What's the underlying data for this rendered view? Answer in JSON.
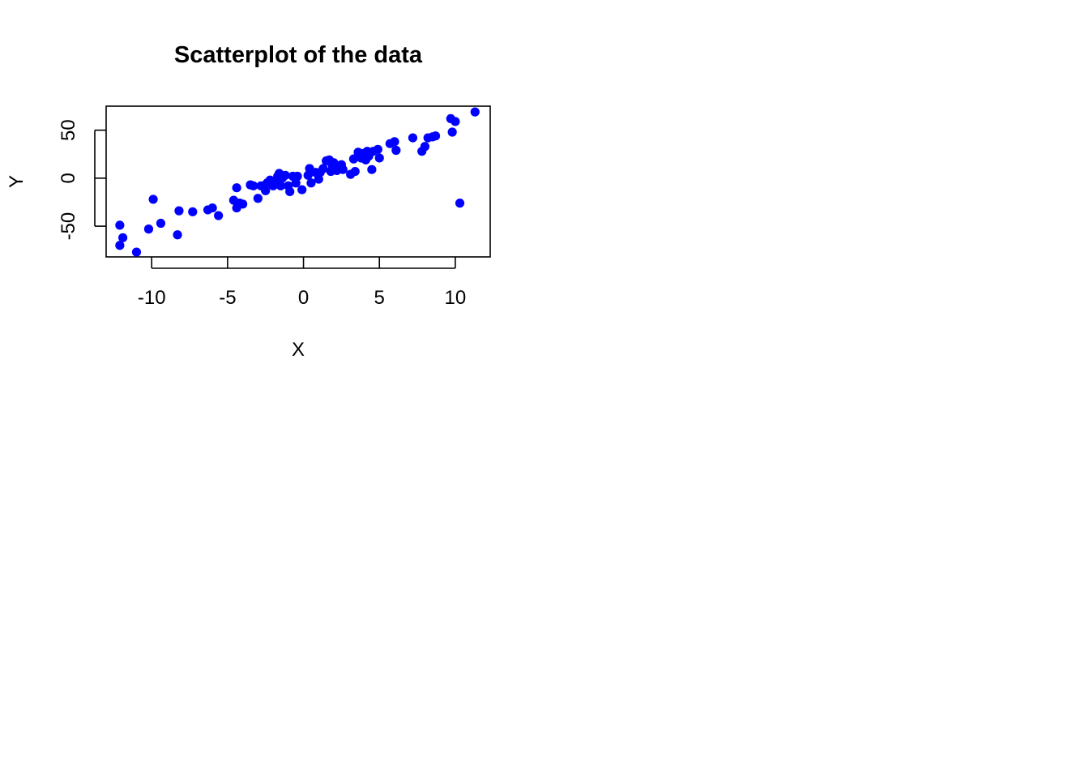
{
  "chart_data": {
    "type": "scatter",
    "title": "Scatterplot of the data",
    "xlabel": "X",
    "ylabel": "Y",
    "xlim": [
      -13,
      12.3
    ],
    "ylim": [
      -82,
      75
    ],
    "xticks": [
      -10,
      -5,
      0,
      5,
      10
    ],
    "xtick_labels": [
      "-10",
      "-5",
      "0",
      "5",
      "10"
    ],
    "yticks": [
      -50,
      0,
      50
    ],
    "ytick_labels": [
      "-50",
      "0",
      "50"
    ],
    "grid": false,
    "legend": "none",
    "marker": "filled-circle",
    "color": "#0000ff",
    "points": [
      {
        "x": -12.1,
        "y": -49
      },
      {
        "x": -11.9,
        "y": -62
      },
      {
        "x": -12.1,
        "y": -70
      },
      {
        "x": -11.0,
        "y": -77
      },
      {
        "x": -10.2,
        "y": -53
      },
      {
        "x": -9.9,
        "y": -22
      },
      {
        "x": -9.4,
        "y": -47
      },
      {
        "x": -8.2,
        "y": -34
      },
      {
        "x": -8.3,
        "y": -59
      },
      {
        "x": -7.3,
        "y": -35
      },
      {
        "x": -6.3,
        "y": -33
      },
      {
        "x": -6.0,
        "y": -31
      },
      {
        "x": -5.6,
        "y": -39
      },
      {
        "x": -4.6,
        "y": -23
      },
      {
        "x": -4.4,
        "y": -31
      },
      {
        "x": -4.4,
        "y": -10
      },
      {
        "x": -4.2,
        "y": -26
      },
      {
        "x": -4.0,
        "y": -27
      },
      {
        "x": -3.5,
        "y": -7
      },
      {
        "x": -3.3,
        "y": -8
      },
      {
        "x": -3.0,
        "y": -21
      },
      {
        "x": -2.8,
        "y": -8
      },
      {
        "x": -2.5,
        "y": -13
      },
      {
        "x": -2.4,
        "y": -5
      },
      {
        "x": -2.2,
        "y": -2
      },
      {
        "x": -2.0,
        "y": -8
      },
      {
        "x": -1.8,
        "y": -6
      },
      {
        "x": -1.7,
        "y": 2
      },
      {
        "x": -1.6,
        "y": 5
      },
      {
        "x": -1.5,
        "y": -8
      },
      {
        "x": -1.4,
        "y": 0
      },
      {
        "x": -1.2,
        "y": 3
      },
      {
        "x": -1.0,
        "y": -8
      },
      {
        "x": -0.9,
        "y": -14
      },
      {
        "x": -0.7,
        "y": 2
      },
      {
        "x": -0.5,
        "y": -5
      },
      {
        "x": -0.4,
        "y": 2
      },
      {
        "x": -0.1,
        "y": -12
      },
      {
        "x": 0.3,
        "y": 3
      },
      {
        "x": 0.4,
        "y": 10
      },
      {
        "x": 0.5,
        "y": -5
      },
      {
        "x": 0.8,
        "y": 6
      },
      {
        "x": 1.0,
        "y": -1
      },
      {
        "x": 1.1,
        "y": 6
      },
      {
        "x": 1.3,
        "y": 10
      },
      {
        "x": 1.5,
        "y": 18
      },
      {
        "x": 1.7,
        "y": 19
      },
      {
        "x": 1.8,
        "y": 7
      },
      {
        "x": 1.9,
        "y": 13
      },
      {
        "x": 2.0,
        "y": 16
      },
      {
        "x": 2.2,
        "y": 8
      },
      {
        "x": 2.3,
        "y": 12
      },
      {
        "x": 2.5,
        "y": 14
      },
      {
        "x": 2.6,
        "y": 9
      },
      {
        "x": 3.1,
        "y": 4
      },
      {
        "x": 3.3,
        "y": 20
      },
      {
        "x": 3.4,
        "y": 7
      },
      {
        "x": 3.6,
        "y": 27
      },
      {
        "x": 3.8,
        "y": 21
      },
      {
        "x": 4.0,
        "y": 26
      },
      {
        "x": 4.1,
        "y": 19
      },
      {
        "x": 4.2,
        "y": 28
      },
      {
        "x": 4.3,
        "y": 23
      },
      {
        "x": 4.5,
        "y": 9
      },
      {
        "x": 4.6,
        "y": 28
      },
      {
        "x": 4.9,
        "y": 30
      },
      {
        "x": 5.0,
        "y": 21
      },
      {
        "x": 5.7,
        "y": 36
      },
      {
        "x": 6.0,
        "y": 38
      },
      {
        "x": 6.1,
        "y": 29
      },
      {
        "x": 7.2,
        "y": 42
      },
      {
        "x": 7.8,
        "y": 28
      },
      {
        "x": 8.0,
        "y": 33
      },
      {
        "x": 8.2,
        "y": 42
      },
      {
        "x": 8.5,
        "y": 43
      },
      {
        "x": 8.7,
        "y": 44
      },
      {
        "x": 9.7,
        "y": 62
      },
      {
        "x": 9.8,
        "y": 48
      },
      {
        "x": 10.0,
        "y": 59
      },
      {
        "x": 10.3,
        "y": -26
      },
      {
        "x": 11.3,
        "y": 69
      }
    ]
  }
}
